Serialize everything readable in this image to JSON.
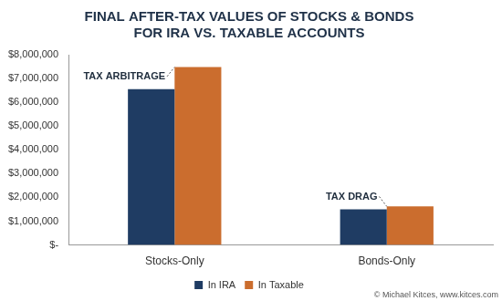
{
  "chart_data": {
    "type": "bar",
    "title": [
      "FINAL AFTER-TAX VALUES OF STOCKS & BONDS",
      "FOR IRA VS. TAXABLE ACCOUNTS"
    ],
    "categories": [
      "Stocks-Only",
      "Bonds-Only"
    ],
    "series": [
      {
        "name": "In IRA",
        "color": "#1f3c63",
        "values": [
          6550000,
          1500000
        ]
      },
      {
        "name": "In Taxable",
        "color": "#cb6d2e",
        "values": [
          7480000,
          1620000
        ]
      }
    ],
    "ylim": [
      0,
      8000000
    ],
    "yticks": [
      {
        "value": 0,
        "label": "$-"
      },
      {
        "value": 1000000,
        "label": "$1,000,000"
      },
      {
        "value": 2000000,
        "label": "$2,000,000"
      },
      {
        "value": 3000000,
        "label": "$3,000,000"
      },
      {
        "value": 4000000,
        "label": "$4,000,000"
      },
      {
        "value": 5000000,
        "label": "$5,000,000"
      },
      {
        "value": 6000000,
        "label": "$6,000,000"
      },
      {
        "value": 7000000,
        "label": "$7,000,000"
      },
      {
        "value": 8000000,
        "label": "$8,000,000"
      }
    ],
    "grid": false,
    "legend": "bottom",
    "annotations": [
      {
        "text": "TAX ARBITRAGE",
        "category": "Stocks-Only"
      },
      {
        "text": "TAX DRAG",
        "category": "Bonds-Only"
      }
    ],
    "credit": "© Michael Kitces, www.kitces.com"
  }
}
